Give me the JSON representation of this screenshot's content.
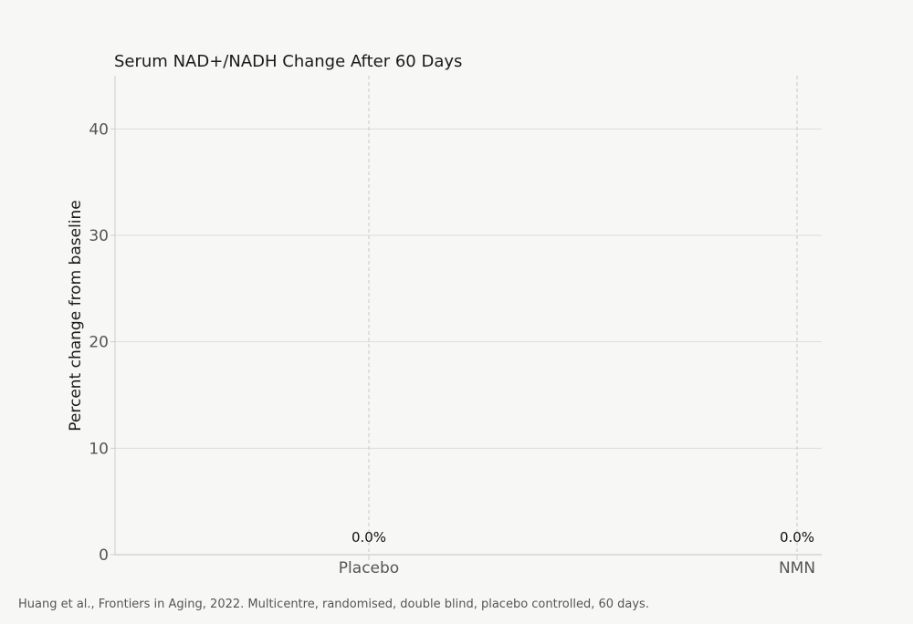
{
  "chart_data": {
    "type": "bar",
    "title": "Serum NAD+/NADH Change After 60 Days",
    "xlabel": "",
    "ylabel": "Percent change from baseline",
    "categories": [
      "Placebo",
      "NMN"
    ],
    "values": [
      0.0,
      0.0
    ],
    "data_labels": [
      "0.0%",
      "0.0%"
    ],
    "ylim": [
      0,
      45
    ],
    "yticks": [
      0,
      10,
      20,
      30,
      40
    ],
    "ytick_labels": [
      "0",
      "10",
      "20",
      "30",
      "40"
    ],
    "grid": true,
    "bar_color": "#4c72b0"
  },
  "footnote": "Huang et al., Frontiers in Aging, 2022. Multicentre, randomised, double blind, placebo controlled, 60 days.",
  "colors": {
    "background": "#f7f7f6",
    "grid": "#dddddd",
    "axis": "#cccccc"
  }
}
